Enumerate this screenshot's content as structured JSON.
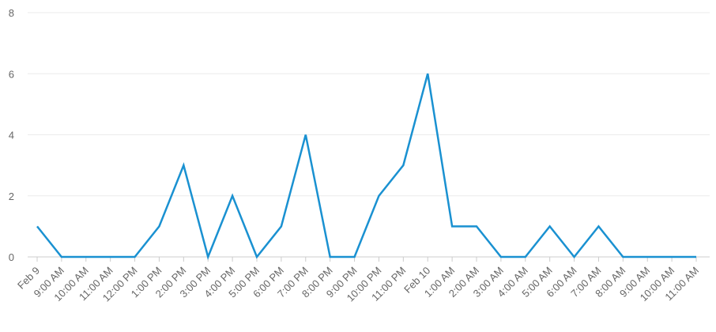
{
  "chart_data": {
    "type": "line",
    "categories": [
      "Feb 9",
      "9:00 AM",
      "10:00 AM",
      "11:00 AM",
      "12:00 PM",
      "1:00 PM",
      "2:00 PM",
      "3:00 PM",
      "4:00 PM",
      "5:00 PM",
      "6:00 PM",
      "7:00 PM",
      "8:00 PM",
      "9:00 PM",
      "10:00 PM",
      "11:00 PM",
      "Feb 10",
      "1:00 AM",
      "2:00 AM",
      "3:00 AM",
      "4:00 AM",
      "5:00 AM",
      "6:00 AM",
      "7:00 AM",
      "8:00 AM",
      "9:00 AM",
      "10:00 AM",
      "11:00 AM"
    ],
    "values": [
      1,
      0,
      0,
      0,
      0,
      1,
      3,
      0,
      2,
      0,
      1,
      4,
      0,
      0,
      2,
      3,
      6,
      1,
      1,
      0,
      0,
      1,
      0,
      1,
      0,
      0,
      0,
      0
    ],
    "color": "#1a91d1",
    "ylim": [
      0,
      8
    ],
    "yticks": [
      0,
      2,
      4,
      6,
      8
    ],
    "grid": true
  }
}
